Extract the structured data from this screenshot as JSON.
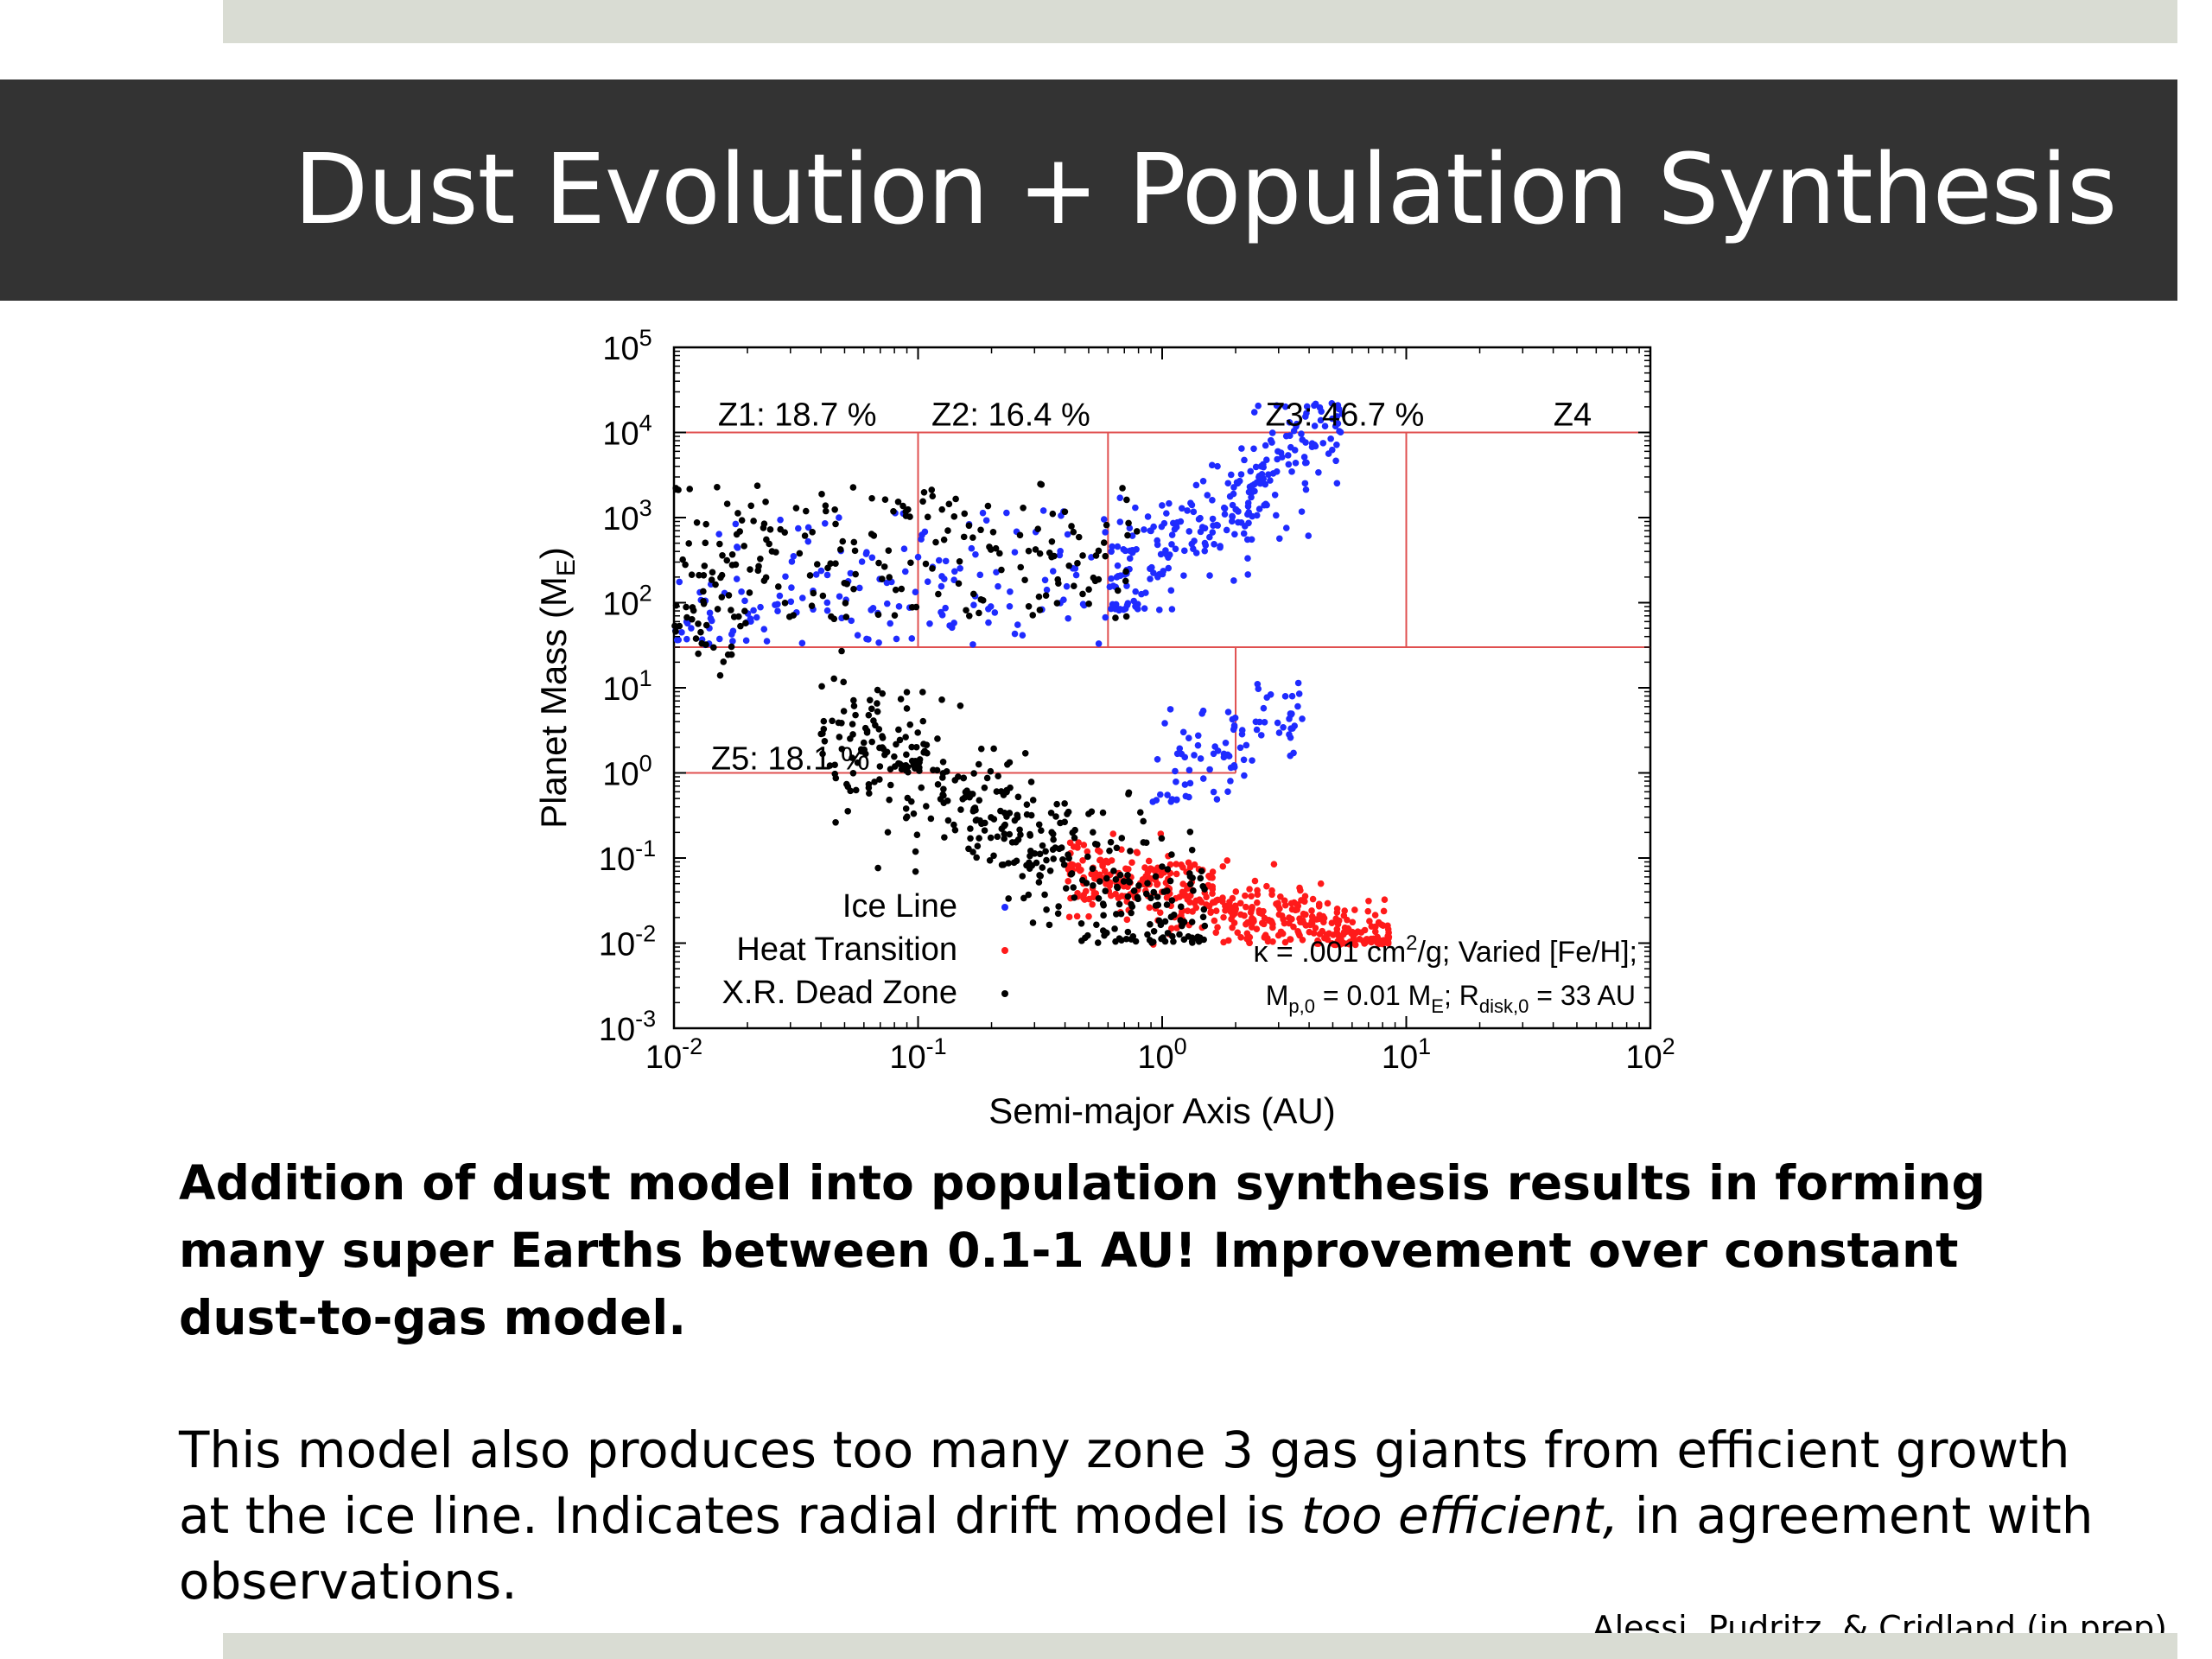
{
  "slide": {
    "title": "Dust Evolution + Population Synthesis",
    "paragraph_bold": "Addition of dust model into population synthesis results in forming many super Earths between 0.1-1 AU! Improvement over constant dust-to-gas model.",
    "paragraph_pre": "This model also produces too many zone 3 gas giants from efficient growth at the ice line. Indicates radial drift model is ",
    "paragraph_italic": "too efficient,",
    "paragraph_post": " in agreement with observations.",
    "credit": "Alessi, Pudritz, & Cridland (in prep)."
  },
  "chart_data": {
    "type": "scatter",
    "xlabel": "Semi-major Axis (AU)",
    "ylabel_main": "Planet Mass (M",
    "ylabel_sub": "E",
    "ylabel_end": ")",
    "xscale": "log",
    "yscale": "log",
    "xlim": [
      0.01,
      100
    ],
    "ylim": [
      0.001,
      100000
    ],
    "x_ticks": [
      {
        "base": "10",
        "exp": "-2",
        "value": 0.01
      },
      {
        "base": "10",
        "exp": "-1",
        "value": 0.1
      },
      {
        "base": "10",
        "exp": "0",
        "value": 1
      },
      {
        "base": "10",
        "exp": "1",
        "value": 10
      },
      {
        "base": "10",
        "exp": "2",
        "value": 100
      }
    ],
    "y_ticks": [
      {
        "base": "10",
        "exp": "5",
        "value": 100000
      },
      {
        "base": "10",
        "exp": "4",
        "value": 10000
      },
      {
        "base": "10",
        "exp": "3",
        "value": 1000
      },
      {
        "base": "10",
        "exp": "2",
        "value": 100
      },
      {
        "base": "10",
        "exp": "1",
        "value": 10
      },
      {
        "base": "10",
        "exp": "0",
        "value": 1
      },
      {
        "base": "10",
        "exp": "-1",
        "value": 0.1
      },
      {
        "base": "10",
        "exp": "-2",
        "value": 0.01
      },
      {
        "base": "10",
        "exp": "-3",
        "value": 0.001
      }
    ],
    "zone_labels": [
      {
        "text": "Z1: 18.7 %",
        "x": 0.032,
        "y": 12000
      },
      {
        "text": "Z2: 16.4 %",
        "x": 0.24,
        "y": 12000
      },
      {
        "text": "Z3: 46.7 %",
        "x": 5.6,
        "y": 12000
      },
      {
        "text": "Z4",
        "x": 48,
        "y": 12000
      },
      {
        "text": "Z5: 18.1 %",
        "x": 0.03,
        "y": 1.1
      }
    ],
    "zone_lines": [
      {
        "x1": 0.01,
        "y1": 10000,
        "x2": 100,
        "y2": 10000
      },
      {
        "x1": 0.01,
        "y1": 30,
        "x2": 100,
        "y2": 30
      },
      {
        "x1": 0.01,
        "y1": 1,
        "x2": 2,
        "y2": 1
      },
      {
        "x1": 0.1,
        "y1": 30,
        "x2": 0.1,
        "y2": 10000
      },
      {
        "x1": 0.6,
        "y1": 30,
        "x2": 0.6,
        "y2": 10000
      },
      {
        "x1": 10,
        "y1": 30,
        "x2": 10,
        "y2": 10000
      },
      {
        "x1": 2,
        "y1": 1,
        "x2": 2,
        "y2": 30
      }
    ],
    "legend": {
      "placement": "bottom-left",
      "entries": [
        {
          "name": "Ice Line",
          "color": "#1f2bff"
        },
        {
          "name": "Heat Transition",
          "color": "#ff1a1a"
        },
        {
          "name": "X.R. Dead Zone",
          "color": "#000000"
        }
      ]
    },
    "annotation1_a": "κ = .001 cm",
    "annotation1_sup": "2",
    "annotation1_b": "/g; Varied [Fe/H];",
    "annotation2_a": "M",
    "annotation2_sub1": "p,0",
    "annotation2_b": " = 0.01 M",
    "annotation2_sub2": "E",
    "annotation2_c": "; R",
    "annotation2_sub3": "disk,0",
    "annotation2_d": " = 33 AU",
    "zone_line_color": "#e05050",
    "series": [
      {
        "name": "Ice Line",
        "color": "#1f2bff",
        "clusters": [
          {
            "n": 260,
            "x_range": [
              0.6,
              5.5
            ],
            "ymin_log": 1.9,
            "ymax_log": 4.35,
            "trend": [
              0.6,
              2.1,
              5.5,
              4.1
            ],
            "spread": 0.35
          },
          {
            "n": 170,
            "x_range": [
              0.01,
              0.6
            ],
            "ymin_log": 1.5,
            "ymax_log": 3.1,
            "trend": [
              0.01,
              2.0,
              0.6,
              2.4
            ],
            "spread": 0.45
          },
          {
            "n": 90,
            "x_range": [
              0.9,
              3.8
            ],
            "ymin_log": -0.35,
            "ymax_log": 1.2,
            "trend": [
              0.9,
              -0.1,
              3.8,
              0.7
            ],
            "spread": 0.3
          }
        ]
      },
      {
        "name": "Heat Transition",
        "color": "#ff1a1a",
        "clusters": [
          {
            "n": 460,
            "x_range": [
              0.4,
              8.5
            ],
            "ymin_log": -2.02,
            "ymax_log": -0.7,
            "trend": [
              0.4,
              -1.1,
              8.5,
              -2.0
            ],
            "spread": 0.22
          }
        ]
      },
      {
        "name": "X.R. Dead Zone",
        "color": "#000000",
        "clusters": [
          {
            "n": 420,
            "x_range": [
              0.04,
              1.5
            ],
            "ymin_log": -2.0,
            "ymax_log": 1.5,
            "trend": [
              0.04,
              0.6,
              1.5,
              -1.9
            ],
            "spread": 0.45
          },
          {
            "n": 200,
            "x_range": [
              0.01,
              0.8
            ],
            "ymin_log": 1.8,
            "ymax_log": 3.4,
            "trend": [
              0.01,
              2.6,
              0.8,
              2.6
            ],
            "spread": 0.5
          },
          {
            "n": 30,
            "x_range": [
              0.01,
              0.02
            ],
            "ymin_log": 1.1,
            "ymax_log": 2.3,
            "trend": [
              0.01,
              1.7,
              0.02,
              1.7
            ],
            "spread": 0.4
          }
        ]
      }
    ]
  }
}
